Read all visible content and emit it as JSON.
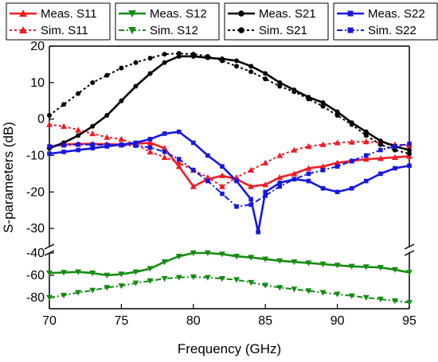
{
  "chart_data": {
    "type": "line",
    "xlabel": "Frequency (GHz)",
    "ylabel": "S-parameters (dB)",
    "xlim": [
      70,
      95
    ],
    "xticks": [
      70,
      75,
      80,
      85,
      90,
      95
    ],
    "y_axis_break": true,
    "upper_ylim": [
      -35,
      20
    ],
    "upper_yticks": [
      20,
      10,
      0,
      -10,
      -20,
      -30
    ],
    "lower_ylim": [
      -90,
      -40
    ],
    "lower_yticks": [
      -40,
      -60,
      -80
    ],
    "grid": false,
    "legend_placement": "top",
    "series": [
      {
        "name": "Meas. S11",
        "color": "#ee1c24",
        "dash": "solid",
        "marker": "triangle-up",
        "panel": "upper",
        "x": [
          70,
          71,
          72,
          73,
          74,
          75,
          76,
          77,
          78,
          79,
          80,
          81,
          82,
          83,
          84,
          85,
          86,
          87,
          88,
          89,
          90,
          91,
          92,
          93,
          94,
          95
        ],
        "y": [
          -7.5,
          -7,
          -6.8,
          -6.8,
          -6.9,
          -7,
          -6.8,
          -6.5,
          -8,
          -13,
          -18.5,
          -16.5,
          -15.5,
          -16.5,
          -18.5,
          -18,
          -16,
          -15,
          -13.5,
          -13,
          -12,
          -11.5,
          -11,
          -10.8,
          -10.5,
          -10.2
        ]
      },
      {
        "name": "Sim. S11",
        "color": "#ee1c24",
        "dash": "dotted",
        "marker": "triangle-up",
        "panel": "upper",
        "x": [
          70,
          71,
          72,
          73,
          74,
          75,
          76,
          77,
          78,
          79,
          80,
          81,
          82,
          83,
          84,
          85,
          86,
          87,
          88,
          89,
          90,
          91,
          92,
          93,
          94,
          95
        ],
        "y": [
          -1.5,
          -2,
          -3,
          -4,
          -5,
          -5.5,
          -7,
          -9,
          -10.5,
          -12,
          -14,
          -16,
          -18.5,
          -16,
          -14,
          -12,
          -10,
          -8.5,
          -7.5,
          -7,
          -6.5,
          -6.3,
          -6.2,
          -6.5,
          -7,
          -7.2
        ]
      },
      {
        "name": "Meas. S12",
        "color": "#158c12",
        "dash": "solid",
        "marker": "triangle-down",
        "panel": "lower",
        "x": [
          70,
          71,
          72,
          73,
          74,
          75,
          76,
          77,
          78,
          79,
          80,
          81,
          82,
          83,
          84,
          85,
          86,
          87,
          88,
          89,
          90,
          91,
          92,
          93,
          94,
          95
        ],
        "y": [
          -58,
          -57.5,
          -57,
          -58,
          -60,
          -59,
          -57,
          -54,
          -48,
          -43,
          -40,
          -40,
          -41,
          -43,
          -44,
          -45.5,
          -47,
          -48,
          -49,
          -50,
          -51,
          -52,
          -52.5,
          -53,
          -55,
          -57.5
        ]
      },
      {
        "name": "Sim. S12",
        "color": "#158c12",
        "dash": "dashdot",
        "marker": "triangle-down",
        "panel": "lower",
        "x": [
          70,
          71,
          72,
          73,
          74,
          75,
          76,
          77,
          78,
          79,
          80,
          81,
          82,
          83,
          84,
          85,
          86,
          87,
          88,
          89,
          90,
          91,
          92,
          93,
          94,
          95
        ],
        "y": [
          -80,
          -78,
          -75.5,
          -73.5,
          -71,
          -69.5,
          -67,
          -65,
          -63,
          -62,
          -61.5,
          -62,
          -63,
          -64,
          -66.5,
          -69,
          -71,
          -72.5,
          -74,
          -75.5,
          -77,
          -78.5,
          -80,
          -81.5,
          -83,
          -84.5
        ]
      },
      {
        "name": "Meas. S21",
        "color": "#000000",
        "dash": "solid",
        "marker": "circle",
        "panel": "upper",
        "x": [
          70,
          71,
          72,
          73,
          74,
          75,
          76,
          77,
          78,
          79,
          80,
          81,
          82,
          83,
          84,
          85,
          86,
          87,
          88,
          89,
          90,
          91,
          92,
          93,
          94,
          95
        ],
        "y": [
          -8,
          -6.5,
          -4.5,
          -2,
          1,
          5,
          9,
          12.5,
          15.5,
          17.2,
          17.2,
          16.8,
          16.5,
          16,
          14.5,
          12.5,
          10,
          8,
          6,
          4.5,
          2,
          -1,
          -3.5,
          -6,
          -7.5,
          -8.5
        ]
      },
      {
        "name": "Sim. S21",
        "color": "#000000",
        "dash": "dotted",
        "marker": "circle",
        "panel": "upper",
        "x": [
          70,
          71,
          72,
          73,
          74,
          75,
          76,
          77,
          78,
          79,
          80,
          81,
          82,
          83,
          84,
          85,
          86,
          87,
          88,
          89,
          90,
          91,
          92,
          93,
          94,
          95
        ],
        "y": [
          1,
          4,
          7,
          10,
          12,
          14,
          15.5,
          16.7,
          17.8,
          18,
          17.8,
          17.2,
          16,
          14.5,
          13,
          11,
          9,
          7.5,
          5.5,
          3.5,
          1,
          -1.5,
          -4.5,
          -7,
          -8.5,
          -9.5
        ]
      },
      {
        "name": "Meas. S22",
        "color": "#1717e0",
        "dash": "solid",
        "marker": "square",
        "panel": "upper",
        "x": [
          70,
          71,
          72,
          73,
          74,
          75,
          76,
          77,
          78,
          79,
          80,
          81,
          82,
          83,
          84,
          84.5,
          85,
          86,
          87,
          88,
          89,
          90,
          91,
          92,
          93,
          94,
          95
        ],
        "y": [
          -9.5,
          -9,
          -8.5,
          -8,
          -7.5,
          -7,
          -6.5,
          -5.5,
          -4,
          -3.5,
          -6.5,
          -10,
          -13,
          -17,
          -22,
          -31,
          -20,
          -17.5,
          -16.5,
          -17,
          -19,
          -20,
          -19,
          -17,
          -15,
          -13.5,
          -12.8
        ]
      },
      {
        "name": "Sim. S22",
        "color": "#1717e0",
        "dash": "dashdot",
        "marker": "square",
        "panel": "upper",
        "x": [
          70,
          71,
          72,
          73,
          74,
          75,
          76,
          77,
          78,
          79,
          80,
          81,
          82,
          83,
          84,
          85,
          86,
          87,
          88,
          89,
          90,
          91,
          92,
          93,
          94,
          95
        ],
        "y": [
          -7.5,
          -7.2,
          -7,
          -7,
          -7.1,
          -7.2,
          -7.3,
          -7.8,
          -9,
          -11,
          -14,
          -17,
          -20.5,
          -24,
          -23.5,
          -21,
          -18.5,
          -16.5,
          -15,
          -14,
          -13,
          -11.5,
          -10,
          -8.5,
          -7.5,
          -6.8
        ]
      }
    ]
  }
}
